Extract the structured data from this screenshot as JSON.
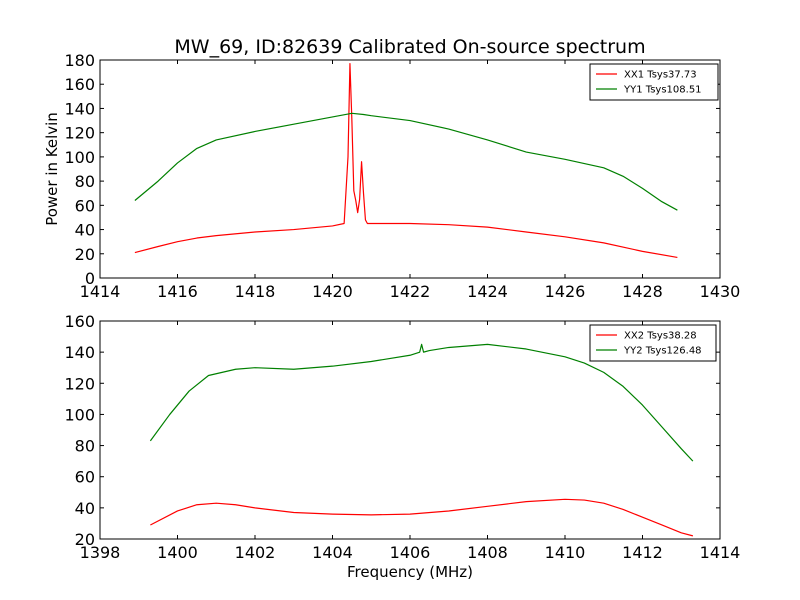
{
  "figure": {
    "title": "MW_69, ID:82639 Calibrated On-source spectrum",
    "ylabel": "Power in Kelvin",
    "xlabel": "Frequency (MHz)"
  },
  "chart_data": [
    {
      "type": "line",
      "title": "MW_69, ID:82639 Calibrated On-source spectrum",
      "xlabel": "",
      "ylabel": "Power in Kelvin",
      "xlim": [
        1414,
        1430
      ],
      "ylim": [
        0,
        180
      ],
      "xticks": [
        1414,
        1416,
        1418,
        1420,
        1422,
        1424,
        1426,
        1428,
        1430
      ],
      "yticks": [
        0,
        20,
        40,
        60,
        80,
        100,
        120,
        140,
        160,
        180
      ],
      "legend_position": "top-right",
      "grid": false,
      "series": [
        {
          "name": "XX1 Tsys37.73",
          "color": "#ff0000",
          "x": [
            1414.9,
            1415.5,
            1416.0,
            1416.5,
            1417.0,
            1418.0,
            1419.0,
            1420.0,
            1420.3,
            1420.4,
            1420.45,
            1420.5,
            1420.55,
            1420.6,
            1420.65,
            1420.7,
            1420.75,
            1420.8,
            1420.85,
            1420.9,
            1421.0,
            1422.0,
            1423.0,
            1424.0,
            1425.0,
            1426.0,
            1427.0,
            1428.0,
            1428.9
          ],
          "y": [
            21,
            26,
            30,
            33,
            35,
            38,
            40,
            43,
            45,
            100,
            177,
            130,
            72,
            64,
            54,
            65,
            96,
            70,
            48,
            45,
            45,
            45,
            44,
            42,
            38,
            34,
            29,
            22,
            17
          ]
        },
        {
          "name": "YY1 Tsys108.51",
          "color": "#008000",
          "x": [
            1414.9,
            1415.5,
            1416.0,
            1416.5,
            1417.0,
            1418.0,
            1419.0,
            1420.0,
            1420.5,
            1420.8,
            1421.0,
            1422.0,
            1423.0,
            1424.0,
            1425.0,
            1426.0,
            1427.0,
            1427.5,
            1428.0,
            1428.5,
            1428.9
          ],
          "y": [
            64,
            80,
            95,
            107,
            114,
            121,
            127,
            133,
            136,
            135,
            134,
            130,
            123,
            114,
            104,
            98,
            91,
            84,
            74,
            63,
            56
          ]
        }
      ]
    },
    {
      "type": "line",
      "xlabel": "Frequency (MHz)",
      "ylabel": "",
      "xlim": [
        1398,
        1414
      ],
      "ylim": [
        20,
        160
      ],
      "xticks": [
        1398,
        1400,
        1402,
        1404,
        1406,
        1408,
        1410,
        1412,
        1414
      ],
      "yticks": [
        20,
        40,
        60,
        80,
        100,
        120,
        140,
        160
      ],
      "legend_position": "top-right",
      "grid": false,
      "series": [
        {
          "name": "XX2 Tsys38.28",
          "color": "#ff0000",
          "x": [
            1399.3,
            1400.0,
            1400.5,
            1401.0,
            1401.5,
            1402.0,
            1403.0,
            1404.0,
            1405.0,
            1406.0,
            1407.0,
            1408.0,
            1409.0,
            1410.0,
            1410.5,
            1411.0,
            1411.5,
            1412.0,
            1412.5,
            1413.0,
            1413.3
          ],
          "y": [
            29,
            38,
            42,
            43,
            42,
            40,
            37,
            36,
            35.5,
            36,
            38,
            41,
            44,
            45.5,
            45,
            43,
            39,
            34,
            29,
            24,
            22
          ]
        },
        {
          "name": "YY2 Tsys126.48",
          "color": "#008000",
          "x": [
            1399.3,
            1399.8,
            1400.3,
            1400.8,
            1401.5,
            1402.0,
            1403.0,
            1404.0,
            1405.0,
            1406.0,
            1406.25,
            1406.3,
            1406.35,
            1406.5,
            1407.0,
            1408.0,
            1409.0,
            1410.0,
            1410.5,
            1411.0,
            1411.5,
            1412.0,
            1412.5,
            1413.0,
            1413.3
          ],
          "y": [
            83,
            100,
            115,
            125,
            129,
            130,
            129,
            131,
            134,
            138,
            140,
            145,
            140,
            141,
            143,
            145,
            142,
            137,
            133,
            127,
            118,
            106,
            92,
            78,
            70
          ]
        }
      ]
    }
  ]
}
